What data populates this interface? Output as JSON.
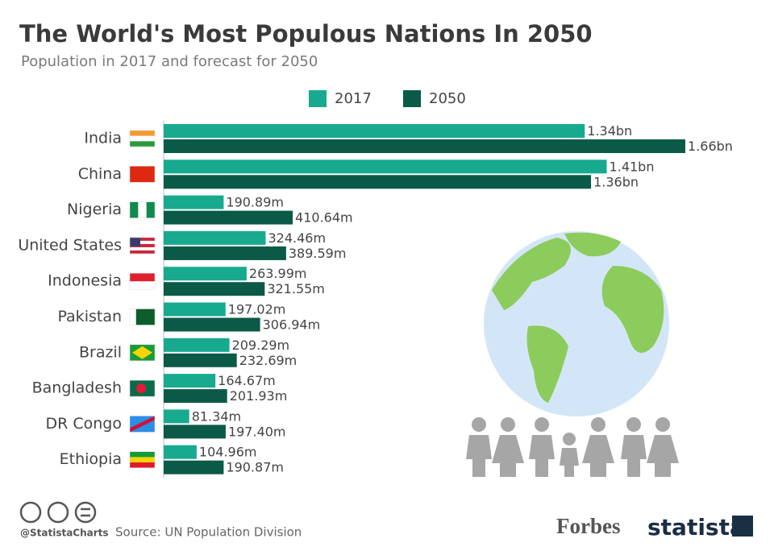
{
  "chart_data": {
    "type": "bar",
    "orientation": "horizontal",
    "title": "The World's Most Populous Nations In 2050",
    "subtitle": "Population in 2017 and forecast for 2050",
    "categories": [
      "India",
      "China",
      "Nigeria",
      "United States",
      "Indonesia",
      "Pakistan",
      "Brazil",
      "Bangladesh",
      "DR Congo",
      "Ethiopia"
    ],
    "series": [
      {
        "name": "2017",
        "color": "#17aa8f",
        "values": [
          1340,
          1410,
          190.89,
          324.46,
          263.99,
          197.02,
          209.29,
          164.67,
          81.34,
          104.96
        ],
        "value_labels": [
          "1.34bn",
          "1.41bn",
          "190.89m",
          "324.46m",
          "263.99m",
          "197.02m",
          "209.29m",
          "164.67m",
          "81.34m",
          "104.96m"
        ]
      },
      {
        "name": "2050",
        "color": "#0b5a48",
        "values": [
          1660,
          1360,
          410.64,
          389.59,
          321.55,
          306.94,
          232.69,
          201.93,
          197.4,
          190.87
        ],
        "value_labels": [
          "1.66bn",
          "1.36bn",
          "410.64m",
          "389.59m",
          "321.55m",
          "306.94m",
          "232.69m",
          "201.93m",
          "197.40m",
          "190.87m"
        ]
      }
    ],
    "footer": {
      "handle": "@StatistaCharts",
      "source": "Source: UN Population Division",
      "partner": "Forbes",
      "brand": "statista"
    }
  }
}
